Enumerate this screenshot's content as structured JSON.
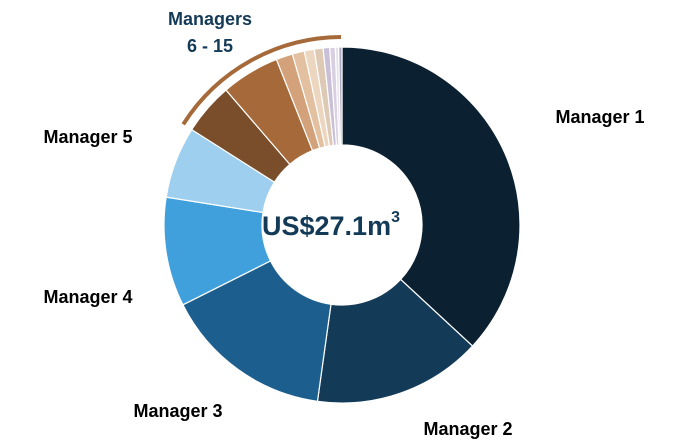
{
  "chart_data": {
    "type": "donut",
    "categories": [
      "Manager 1",
      "Manager 2",
      "Manager 3",
      "Manager 4",
      "Manager 5",
      null,
      null,
      null,
      null,
      null,
      null,
      null,
      null,
      null,
      null
    ],
    "values": [
      36.9,
      15.3,
      15.4,
      9.9,
      6.5,
      4.7,
      5.3,
      1.5,
      1.1,
      0.9,
      0.8,
      0.6,
      0.5,
      0.3,
      0.3
    ],
    "colors": [
      "#0b2030",
      "#133a56",
      "#1c5f8e",
      "#3fa0dc",
      "#9fcfee",
      "#7a4e2a",
      "#a66a3a",
      "#d3a27a",
      "#e3c0a0",
      "#edd6c0",
      "#ddc9b4",
      "#c9c0d8",
      "#d8d0e0",
      "#e6e0ea",
      "#b0a8c0"
    ],
    "group_label": [
      "Managers",
      "6 - 15"
    ],
    "group_color": "#a66a3a",
    "center_label": "US$27.1m",
    "center_label_sup": "3"
  }
}
